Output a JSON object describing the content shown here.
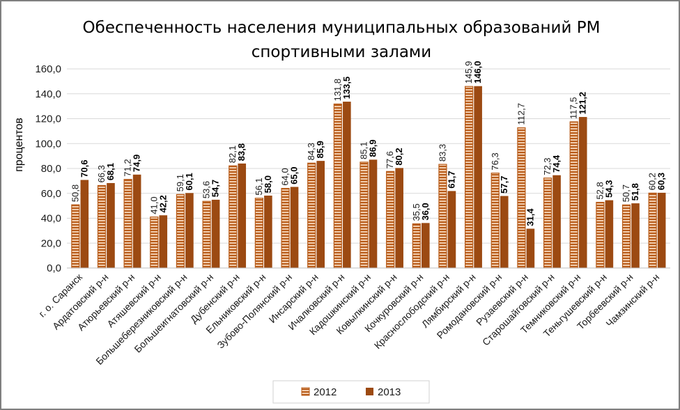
{
  "chart_data": {
    "type": "bar",
    "title": "Обеспеченность населения муниципальных образований РМ спортивными залами",
    "title_lines": [
      "Обеспеченность населения муниципальных образований РМ",
      "спортивными залами"
    ],
    "ylabel": "процентов",
    "xlabel": "",
    "ylim": [
      0,
      160
    ],
    "yticks": [
      "0,0",
      "20,0",
      "40,0",
      "60,0",
      "80,0",
      "100,0",
      "120,0",
      "140,0",
      "160,0"
    ],
    "grid": true,
    "legend_position": "bottom",
    "categories": [
      "г. о. Саранск",
      "Ардатовский р-н",
      "Атюрьевский р-н",
      "Атяшевский р-н",
      "Большеберезниковский р-н",
      "Большеигнатовский р-н",
      "Дубенский р-н",
      "Ельниковский р-н",
      "Зубово-Полянский р-н",
      "Инсарский р-н",
      "Ичалковский р-н",
      "Кадошкинский р-н",
      "Ковылкинский р-н",
      "Кочкуровский р-н",
      "Краснослободский р-н",
      "Лямбирский р-н",
      "Ромодановский р-н",
      "Рузаевский р-н",
      "Старошайговский р-н",
      "Темниковский р-н",
      "Теньгушевский р-н",
      "Торбеевский р-н",
      "Чамзинский р-н"
    ],
    "series": [
      {
        "name": "2012",
        "color": "#b85c1a",
        "pattern": "horizontal-stripes",
        "values": [
          50.8,
          66.3,
          71.2,
          41.0,
          59.1,
          53.6,
          82.1,
          56.1,
          64.0,
          84.3,
          131.8,
          85.1,
          77.6,
          35.5,
          83.3,
          145.9,
          76.3,
          112.7,
          72.3,
          117.5,
          52.8,
          50.7,
          60.2
        ],
        "labels": [
          "50,8",
          "66,3",
          "71,2",
          "41,0",
          "59,1",
          "53,6",
          "82,1",
          "56,1",
          "64,0",
          "84,3",
          "131,8",
          "85,1",
          "77,6",
          "35,5",
          "83,3",
          "145,9",
          "76,3",
          "112,7",
          "72,3",
          "117,5",
          "52,8",
          "50,7",
          "60,2"
        ]
      },
      {
        "name": "2013",
        "color": "#9c4a12",
        "pattern": "solid",
        "values": [
          70.6,
          68.1,
          74.9,
          42.2,
          60.1,
          54.7,
          83.8,
          58.0,
          65.0,
          85.9,
          133.5,
          86.9,
          80.2,
          36.0,
          61.7,
          146.0,
          57.7,
          31.4,
          74.4,
          121.2,
          54.3,
          51.8,
          60.3
        ],
        "labels": [
          "70,6",
          "68,1",
          "74,9",
          "42,2",
          "60,1",
          "54,7",
          "83,8",
          "58,0",
          "65,0",
          "85,9",
          "133,5",
          "86,9",
          "80,2",
          "36,0",
          "61,7",
          "146,0",
          "57,7",
          "31,4",
          "74,4",
          "121,2",
          "54,3",
          "51,8",
          "60,3"
        ]
      }
    ]
  }
}
